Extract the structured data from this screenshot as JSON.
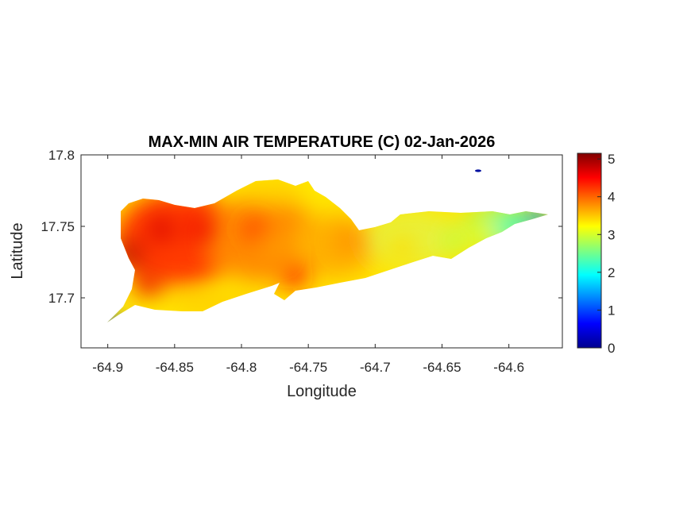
{
  "chart_data": {
    "type": "heatmap",
    "title": "MAX-MIN AIR TEMPERATURE (C) 02-Jan-2026",
    "xlabel": "Longitude",
    "ylabel": "Latitude",
    "xlim": [
      -64.92,
      -64.56
    ],
    "ylim": [
      17.665,
      17.8
    ],
    "x_ticks": [
      -64.9,
      -64.85,
      -64.8,
      -64.75,
      -64.7,
      -64.65,
      -64.6
    ],
    "x_tick_labels": [
      "-64.9",
      "-64.85",
      "-64.8",
      "-64.75",
      "-64.7",
      "-64.65",
      "-64.6"
    ],
    "y_ticks": [
      17.7,
      17.75,
      17.8
    ],
    "y_tick_labels": [
      "17.7",
      "17.75",
      "17.8"
    ],
    "colorbar": {
      "min": 0,
      "max": 5.15,
      "ticks": [
        0,
        1,
        2,
        3,
        4,
        5
      ],
      "tick_labels": [
        "0",
        "1",
        "2",
        "3",
        "4",
        "5"
      ],
      "colormap": "jet"
    },
    "hotspots": [
      {
        "lon": -64.885,
        "lat": 17.73,
        "value": 4.9
      },
      {
        "lon": -64.86,
        "lat": 17.748,
        "value": 4.7
      },
      {
        "lon": -64.83,
        "lat": 17.748,
        "value": 4.6
      },
      {
        "lon": -64.87,
        "lat": 17.71,
        "value": 4.6
      },
      {
        "lon": -64.79,
        "lat": 17.748,
        "value": 4.2
      },
      {
        "lon": -64.775,
        "lat": 17.735,
        "value": 3.7
      },
      {
        "lon": -64.76,
        "lat": 17.715,
        "value": 4.4
      },
      {
        "lon": -64.72,
        "lat": 17.74,
        "value": 3.8
      },
      {
        "lon": -64.68,
        "lat": 17.735,
        "value": 3.4
      },
      {
        "lon": -64.64,
        "lat": 17.74,
        "value": 2.9
      },
      {
        "lon": -64.62,
        "lat": 17.746,
        "value": 3.2
      },
      {
        "lon": -64.6,
        "lat": 17.75,
        "value": 2.2
      },
      {
        "lon": -64.578,
        "lat": 17.755,
        "value": 1.4
      },
      {
        "lon": -64.9,
        "lat": 17.68,
        "value": 1.0
      },
      {
        "lon": -64.622,
        "lat": 17.788,
        "value": 0.3
      }
    ],
    "legend": "none",
    "grid": false
  }
}
